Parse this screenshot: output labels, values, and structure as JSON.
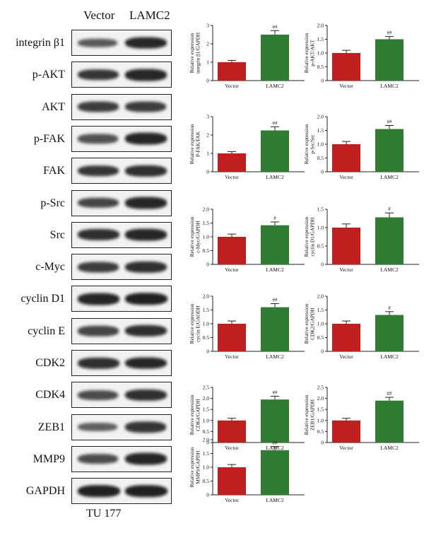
{
  "blot": {
    "columns": [
      "Vector",
      "LAMC2"
    ],
    "caption": "TU 177",
    "rows": [
      {
        "label": "integrin β1",
        "intensity": [
          0.55,
          0.9
        ]
      },
      {
        "label": "p-AKT",
        "intensity": [
          0.8,
          0.9
        ]
      },
      {
        "label": "AKT",
        "intensity": [
          0.75,
          0.75
        ]
      },
      {
        "label": "p-FAK",
        "intensity": [
          0.6,
          0.9
        ]
      },
      {
        "label": "FAK",
        "intensity": [
          0.8,
          0.85
        ]
      },
      {
        "label": "p-Src",
        "intensity": [
          0.7,
          0.9
        ]
      },
      {
        "label": "Src",
        "intensity": [
          0.85,
          0.9
        ]
      },
      {
        "label": "c-Myc",
        "intensity": [
          0.75,
          0.85
        ]
      },
      {
        "label": "cyclin D1",
        "intensity": [
          0.9,
          0.95
        ]
      },
      {
        "label": "cyclin E",
        "intensity": [
          0.7,
          0.85
        ]
      },
      {
        "label": "CDK2",
        "intensity": [
          0.85,
          0.9
        ]
      },
      {
        "label": "CDK4",
        "intensity": [
          0.65,
          0.85
        ]
      },
      {
        "label": "ZEB1",
        "intensity": [
          0.5,
          0.8
        ]
      },
      {
        "label": "MMP9",
        "intensity": [
          0.65,
          0.9
        ]
      },
      {
        "label": "GAPDH",
        "intensity": [
          0.95,
          0.95
        ]
      }
    ]
  },
  "colors": {
    "vector": "#c01f1f",
    "lamc2": "#2e7d32"
  },
  "chart_data": [
    {
      "type": "bar",
      "categories": [
        "Vector",
        "LAMC2"
      ],
      "values": [
        1.0,
        2.5
      ],
      "errors": [
        0.1,
        0.22
      ],
      "ylim": [
        0,
        3
      ],
      "ticks": [
        "0",
        "1",
        "2",
        "3"
      ],
      "ylabel": [
        "Relative expression",
        "integrin β1/GAPDH"
      ],
      "annotation": "##"
    },
    {
      "type": "bar",
      "categories": [
        "Vector",
        "LAMC2"
      ],
      "values": [
        1.0,
        1.5
      ],
      "errors": [
        0.1,
        0.1
      ],
      "ylim": [
        0,
        2.0
      ],
      "ticks": [
        "0",
        "0.5",
        "1.0",
        "1.5",
        "2.0"
      ],
      "ylabel": [
        "Relative expression",
        "p-AKT/AKT"
      ],
      "annotation": "##"
    },
    {
      "type": "bar",
      "categories": [
        "Vector",
        "LAMC2"
      ],
      "values": [
        1.0,
        2.25
      ],
      "errors": [
        0.1,
        0.2
      ],
      "ylim": [
        0,
        3
      ],
      "ticks": [
        "0",
        "1",
        "2",
        "3"
      ],
      "ylabel": [
        "Relative expression",
        "P-FAK/FAK"
      ],
      "annotation": "##"
    },
    {
      "type": "bar",
      "categories": [
        "Vector",
        "LAMC2"
      ],
      "values": [
        1.0,
        1.55
      ],
      "errors": [
        0.1,
        0.13
      ],
      "ylim": [
        0,
        2.0
      ],
      "ticks": [
        "0",
        "0.5",
        "1.0",
        "1.5",
        "2.0"
      ],
      "ylabel": [
        "Relative expression",
        "p-Src/Src"
      ],
      "annotation": "##"
    },
    {
      "type": "bar",
      "categories": [
        "Vector",
        "LAMC2"
      ],
      "values": [
        1.0,
        1.42
      ],
      "errors": [
        0.1,
        0.12
      ],
      "ylim": [
        0,
        2.0
      ],
      "ticks": [
        "0",
        "0.5",
        "1.0",
        "1.5",
        "2.0"
      ],
      "ylabel": [
        "Relative expression",
        "c-Myc/GAPDH"
      ],
      "annotation": "#"
    },
    {
      "type": "bar",
      "categories": [
        "Vector",
        "LAMC2"
      ],
      "values": [
        1.0,
        1.28
      ],
      "errors": [
        0.1,
        0.12
      ],
      "ylim": [
        0,
        1.5
      ],
      "ticks": [
        "0",
        "0.5",
        "1.0",
        "1.5"
      ],
      "ylabel": [
        "Relative expression",
        "cyclin D1/GAPDH"
      ],
      "annotation": "#"
    },
    {
      "type": "bar",
      "categories": [
        "Vector",
        "LAMC2"
      ],
      "values": [
        1.0,
        1.6
      ],
      "errors": [
        0.1,
        0.13
      ],
      "ylim": [
        0,
        2.0
      ],
      "ticks": [
        "0",
        "0.5",
        "1.0",
        "1.5",
        "2.0"
      ],
      "ylabel": [
        "Relative expression",
        "cyclin E/GAODH"
      ],
      "annotation": "##"
    },
    {
      "type": "bar",
      "categories": [
        "Vector",
        "LAMC2"
      ],
      "values": [
        1.0,
        1.32
      ],
      "errors": [
        0.1,
        0.12
      ],
      "ylim": [
        0,
        2.0
      ],
      "ticks": [
        "0",
        "0.5",
        "1.0",
        "1.5",
        "2.0"
      ],
      "ylabel": [
        "Relative expression",
        "CDK2/GAPDH"
      ],
      "annotation": "#"
    },
    {
      "type": "bar",
      "categories": [
        "Vector",
        "LAMC2"
      ],
      "values": [
        1.0,
        1.95
      ],
      "errors": [
        0.1,
        0.15
      ],
      "ylim": [
        0,
        2.5
      ],
      "ticks": [
        "0",
        "0.5",
        "1.0",
        "1.5",
        "2.0",
        "2.5"
      ],
      "ylabel": [
        "Relative expression",
        "CDK4/GAPDH"
      ],
      "annotation": "##"
    },
    {
      "type": "bar",
      "categories": [
        "Vector",
        "LAMC2"
      ],
      "values": [
        1.0,
        1.9
      ],
      "errors": [
        0.1,
        0.15
      ],
      "ylim": [
        0,
        2.5
      ],
      "ticks": [
        "0",
        "0.5",
        "1.0",
        "1.5",
        "2.0",
        "2.5"
      ],
      "ylabel": [
        "Relative expression",
        "ZEB1/GAPDH"
      ],
      "annotation": "##"
    },
    {
      "type": "bar",
      "categories": [
        "Vector",
        "LAMC2"
      ],
      "values": [
        1.0,
        1.62
      ],
      "errors": [
        0.1,
        0.13
      ],
      "ylim": [
        0,
        2.0
      ],
      "ticks": [
        "0",
        "0.5",
        "1.0",
        "1.5",
        "2.0"
      ],
      "ylabel": [
        "Relative expression",
        "MMP9/GAPDH"
      ],
      "annotation": "##"
    }
  ]
}
